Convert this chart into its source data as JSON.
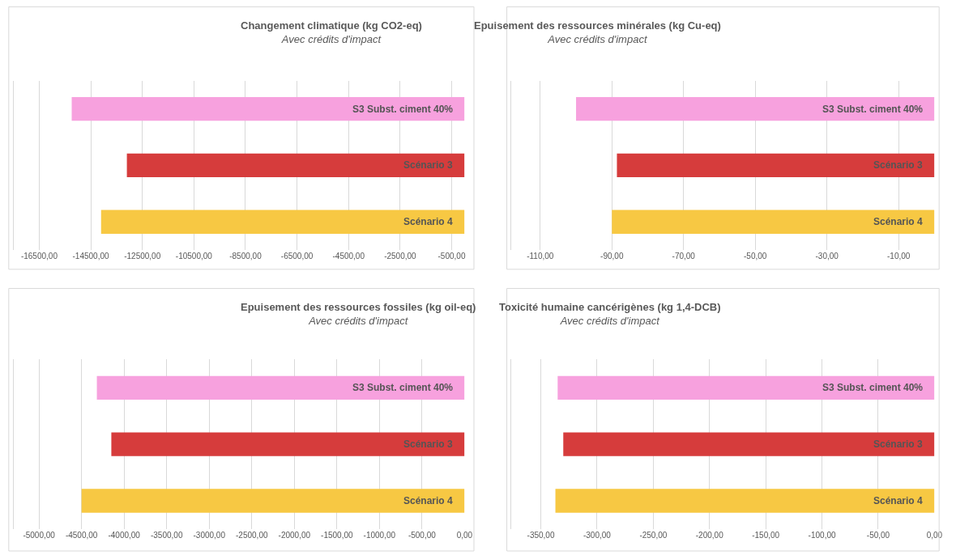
{
  "chart_data": [
    {
      "type": "bar",
      "orientation": "horizontal",
      "title": "Changement climatique (kg CO2-eq)",
      "subtitle": "Avec crédits d'impact",
      "categories": [
        "S3 Subst. ciment 40%",
        "Scénario 3",
        "Scénario 4"
      ],
      "values": [
        -15240,
        -13100,
        -14100
      ],
      "colors": [
        "#f7a1de",
        "#d63c3c",
        "#f7c843"
      ],
      "xlim": [
        -17500,
        0
      ],
      "xticks": [
        {
          "value": -16500,
          "label": "-16500,00"
        },
        {
          "value": -14500,
          "label": "-14500,00"
        },
        {
          "value": -12500,
          "label": "-12500,00"
        },
        {
          "value": -10500,
          "label": "-10500,00"
        },
        {
          "value": -8500,
          "label": "-8500,00"
        },
        {
          "value": -6500,
          "label": "-6500,00"
        },
        {
          "value": -4500,
          "label": "-4500,00"
        },
        {
          "value": -2500,
          "label": "-2500,00"
        },
        {
          "value": -500,
          "label": "-500,00"
        }
      ],
      "grid": "x",
      "tick_labels": "x"
    },
    {
      "type": "bar",
      "orientation": "horizontal",
      "title": "Epuisement des ressources minérales (kg Cu-eq)",
      "subtitle": "Avec crédits d'impact",
      "categories": [
        "S3 Subst. ciment 40%",
        "Scénario 3",
        "Scénario 4"
      ],
      "values": [
        -100,
        -88.6,
        -90
      ],
      "colors": [
        "#f7a1de",
        "#d63c3c",
        "#f7c843"
      ],
      "xlim": [
        -118,
        0
      ],
      "xticks": [
        {
          "value": -110,
          "label": "-110,00"
        },
        {
          "value": -90,
          "label": "-90,00"
        },
        {
          "value": -70,
          "label": "-70,00"
        },
        {
          "value": -50,
          "label": "-50,00"
        },
        {
          "value": -30,
          "label": "-30,00"
        },
        {
          "value": -10,
          "label": "-10,00"
        }
      ],
      "grid": "x",
      "tick_labels": "x"
    },
    {
      "type": "bar",
      "orientation": "horizontal",
      "title": "Epuisement des ressources fossiles (kg oil-eq)",
      "subtitle": "Avec crédits d'impact",
      "categories": [
        "S3 Subst. ciment 40%",
        "Scénario 3",
        "Scénario 4"
      ],
      "values": [
        -4320,
        -4150,
        -4500
      ],
      "colors": [
        "#f7a1de",
        "#d63c3c",
        "#f7c843"
      ],
      "xlim": [
        -5300,
        0
      ],
      "xticks": [
        {
          "value": -5000,
          "label": "-5000,00"
        },
        {
          "value": -4500,
          "label": "-4500,00"
        },
        {
          "value": -4000,
          "label": "-4000,00"
        },
        {
          "value": -3500,
          "label": "-3500,00"
        },
        {
          "value": -3000,
          "label": "-3000,00"
        },
        {
          "value": -2500,
          "label": "-2500,00"
        },
        {
          "value": -2000,
          "label": "-2000,00"
        },
        {
          "value": -1500,
          "label": "-1500,00"
        },
        {
          "value": -1000,
          "label": "-1000,00"
        },
        {
          "value": -500,
          "label": "-500,00"
        },
        {
          "value": 0,
          "label": "0,00"
        }
      ],
      "grid": "x",
      "tick_labels": "x"
    },
    {
      "type": "bar",
      "orientation": "horizontal",
      "title": "Toxicité humaine cancérigènes (kg 1,4-DCB)",
      "subtitle": "Avec crédits d'impact",
      "categories": [
        "S3 Subst. ciment 40%",
        "Scénario 3",
        "Scénario 4"
      ],
      "values": [
        -335,
        -330,
        -337
      ],
      "colors": [
        "#f7a1de",
        "#d63c3c",
        "#f7c843"
      ],
      "xlim": [
        -376,
        0
      ],
      "xticks": [
        {
          "value": -350,
          "label": "-350,00"
        },
        {
          "value": -300,
          "label": "-300,00"
        },
        {
          "value": -250,
          "label": "-250,00"
        },
        {
          "value": -200,
          "label": "-200,00"
        },
        {
          "value": -150,
          "label": "-150,00"
        },
        {
          "value": -100,
          "label": "-100,00"
        },
        {
          "value": -50,
          "label": "-50,00"
        },
        {
          "value": 0,
          "label": "0,00"
        }
      ],
      "grid": "x",
      "tick_labels": "x"
    }
  ]
}
